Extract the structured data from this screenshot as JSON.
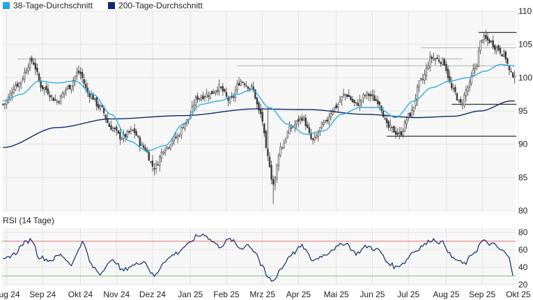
{
  "legend": {
    "sma38_label": "38-Tage-Durchschnitt",
    "sma200_label": "200-Tage-Durchschnitt"
  },
  "rsi_title": "RSI (14 Tage)",
  "colors": {
    "background": "#f7f7f7",
    "grid": "#e2e2e2",
    "candle": "#3a3a3a",
    "sma38": "#21a9e1",
    "sma200": "#0d2a6b",
    "rsi": "#0d2a6b",
    "rsi_upper": "#e57373",
    "rsi_lower": "#7cc47f",
    "support_resistance": "#333333"
  },
  "chart_data": [
    {
      "type": "candlestick",
      "title": "",
      "y_axis_position": "right",
      "ylim": [
        80,
        110
      ],
      "yticks": [
        80,
        85,
        90,
        95,
        100,
        105,
        110
      ],
      "x_tick_labels": [
        "Aug 24",
        "Sep 24",
        "Okt 24",
        "Nov 24",
        "Dez 24",
        "Jan 25",
        "Feb 25",
        "Mrz 25",
        "Apr 25",
        "Mai 25",
        "Jun 25",
        "Jul 25",
        "Aug 25",
        "Sep 25",
        "Okt 25"
      ],
      "grid": true,
      "legend": "top-left",
      "close_anchors": [
        [
          0,
          96.0
        ],
        [
          8,
          99.0
        ],
        [
          16,
          102.5
        ],
        [
          22,
          98.5
        ],
        [
          30,
          96.5
        ],
        [
          36,
          98.5
        ],
        [
          42,
          100.8
        ],
        [
          48,
          97.5
        ],
        [
          54,
          95.5
        ],
        [
          60,
          92.5
        ],
        [
          66,
          91.0
        ],
        [
          72,
          92.0
        ],
        [
          78,
          89.5
        ],
        [
          84,
          86.5
        ],
        [
          90,
          89.5
        ],
        [
          96,
          91.0
        ],
        [
          102,
          93.5
        ],
        [
          108,
          97.0
        ],
        [
          114,
          97.5
        ],
        [
          120,
          98.5
        ],
        [
          126,
          96.5
        ],
        [
          132,
          99.5
        ],
        [
          138,
          98.5
        ],
        [
          143,
          94.5
        ],
        [
          147,
          88.0
        ],
        [
          150,
          84.0
        ],
        [
          154,
          89.5
        ],
        [
          160,
          92.5
        ],
        [
          166,
          94.0
        ],
        [
          172,
          90.5
        ],
        [
          178,
          93.0
        ],
        [
          184,
          95.5
        ],
        [
          190,
          97.5
        ],
        [
          196,
          96.0
        ],
        [
          202,
          97.5
        ],
        [
          208,
          96.5
        ],
        [
          214,
          92.5
        ],
        [
          220,
          91.5
        ],
        [
          226,
          94.5
        ],
        [
          232,
          99.5
        ],
        [
          238,
          103.0
        ],
        [
          244,
          102.5
        ],
        [
          250,
          98.0
        ],
        [
          254,
          96.0
        ],
        [
          258,
          98.5
        ],
        [
          262,
          101.5
        ],
        [
          266,
          106.0
        ],
        [
          270,
          105.5
        ],
        [
          274,
          104.5
        ],
        [
          278,
          103.5
        ],
        [
          282,
          100.5
        ]
      ],
      "sma38_anchors": [
        [
          0,
          96.5
        ],
        [
          10,
          97.5
        ],
        [
          20,
          99.5
        ],
        [
          30,
          99.2
        ],
        [
          40,
          99.5
        ],
        [
          50,
          97.5
        ],
        [
          60,
          94.5
        ],
        [
          70,
          90.5
        ],
        [
          80,
          89.0
        ],
        [
          90,
          89.8
        ],
        [
          100,
          93.0
        ],
        [
          110,
          96.0
        ],
        [
          120,
          96.5
        ],
        [
          130,
          97.5
        ],
        [
          138,
          98.2
        ],
        [
          148,
          95.5
        ],
        [
          158,
          93.0
        ],
        [
          168,
          91.5
        ],
        [
          178,
          92.0
        ],
        [
          188,
          94.5
        ],
        [
          198,
          95.5
        ],
        [
          208,
          95.5
        ],
        [
          218,
          94.0
        ],
        [
          228,
          96.5
        ],
        [
          238,
          98.5
        ],
        [
          248,
          99.5
        ],
        [
          258,
          100.0
        ],
        [
          268,
          101.0
        ],
        [
          276,
          102.0
        ],
        [
          282,
          101.8
        ]
      ],
      "sma200_anchors": [
        [
          0,
          89.5
        ],
        [
          30,
          92.5
        ],
        [
          60,
          93.8
        ],
        [
          100,
          94.3
        ],
        [
          140,
          95.3
        ],
        [
          170,
          95.2
        ],
        [
          200,
          94.5
        ],
        [
          230,
          94.0
        ],
        [
          250,
          94.2
        ],
        [
          265,
          95.0
        ],
        [
          282,
          96.5
        ]
      ],
      "levels": [
        {
          "y": 102.8,
          "from": 8,
          "to": 255
        },
        {
          "y": 101.8,
          "from": 130,
          "to": 282
        },
        {
          "y": 104.5,
          "from": 232,
          "to": 285
        },
        {
          "y": 106.8,
          "from": 264,
          "to": 285
        },
        {
          "y": 96.0,
          "from": 249,
          "to": 285
        },
        {
          "y": 91.2,
          "from": 213,
          "to": 285
        }
      ]
    },
    {
      "type": "line",
      "title": "RSI (14 Tage)",
      "y_axis_position": "right",
      "ylim": [
        20,
        85
      ],
      "yticks": [
        20,
        40,
        60,
        80
      ],
      "reference_lines": [
        70,
        30
      ],
      "rsi_anchors": [
        [
          0,
          48
        ],
        [
          6,
          55
        ],
        [
          12,
          68
        ],
        [
          16,
          72
        ],
        [
          20,
          52
        ],
        [
          26,
          48
        ],
        [
          32,
          54
        ],
        [
          38,
          44
        ],
        [
          44,
          68
        ],
        [
          50,
          40
        ],
        [
          54,
          33
        ],
        [
          58,
          44
        ],
        [
          62,
          48
        ],
        [
          66,
          36
        ],
        [
          72,
          42
        ],
        [
          78,
          47
        ],
        [
          84,
          30
        ],
        [
          90,
          48
        ],
        [
          96,
          56
        ],
        [
          102,
          65
        ],
        [
          108,
          76
        ],
        [
          112,
          78
        ],
        [
          116,
          70
        ],
        [
          120,
          64
        ],
        [
          126,
          72
        ],
        [
          132,
          62
        ],
        [
          136,
          66
        ],
        [
          140,
          58
        ],
        [
          144,
          40
        ],
        [
          147,
          28
        ],
        [
          150,
          24
        ],
        [
          154,
          38
        ],
        [
          160,
          55
        ],
        [
          166,
          64
        ],
        [
          172,
          48
        ],
        [
          178,
          54
        ],
        [
          184,
          62
        ],
        [
          190,
          68
        ],
        [
          196,
          56
        ],
        [
          202,
          64
        ],
        [
          208,
          60
        ],
        [
          214,
          45
        ],
        [
          218,
          40
        ],
        [
          222,
          45
        ],
        [
          228,
          58
        ],
        [
          234,
          66
        ],
        [
          238,
          72
        ],
        [
          244,
          68
        ],
        [
          250,
          50
        ],
        [
          256,
          44
        ],
        [
          262,
          58
        ],
        [
          266,
          70
        ],
        [
          272,
          66
        ],
        [
          278,
          58
        ],
        [
          281,
          50
        ],
        [
          283,
          33
        ]
      ]
    }
  ]
}
